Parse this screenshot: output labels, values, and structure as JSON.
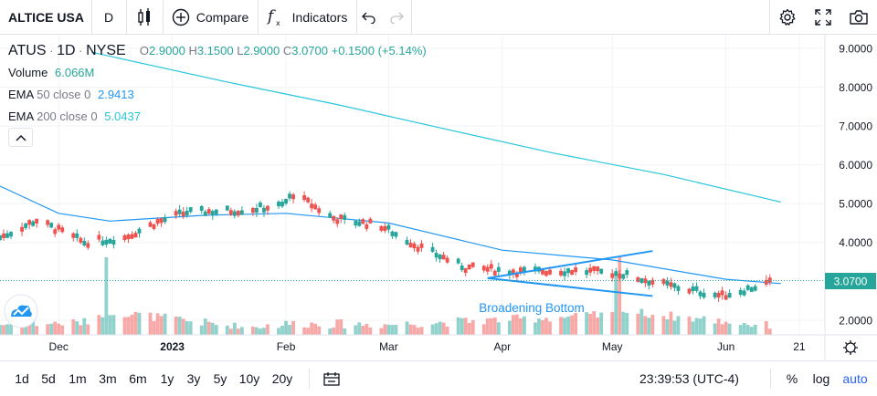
{
  "toolbar": {
    "symbol": "ALTICE USA",
    "interval": "D",
    "compare_label": "Compare",
    "indicators_label": "Indicators"
  },
  "legend": {
    "symbol": "ATUS",
    "interval": "1D",
    "exchange": "NYSE",
    "o_label": "O",
    "o_value": "2.9000",
    "h_label": "H",
    "h_value": "3.1500",
    "l_label": "L",
    "l_value": "2.9000",
    "c_label": "C",
    "c_value": "3.0700",
    "change": "+0.1500 (+5.14%)",
    "volume_label": "Volume",
    "volume_value": "6.066M",
    "ema50_label": "EMA",
    "ema50_params": "50 close 0",
    "ema50_value": "2.9413",
    "ema200_label": "EMA",
    "ema200_params": "200 close 0",
    "ema200_value": "5.0437"
  },
  "bottom": {
    "ranges": [
      "1d",
      "5d",
      "1m",
      "3m",
      "6m",
      "1y",
      "3y",
      "5y",
      "10y",
      "20y"
    ],
    "time": "23:39:53 (UTC-4)",
    "percent": "%",
    "log": "log",
    "auto": "auto"
  },
  "colors": {
    "up": "#26a69a",
    "down": "#ef5350",
    "ema50": "#2196f3",
    "ema200": "#26c6da",
    "pattern": "#2196f3",
    "accent": "#2962ff"
  },
  "icons": [
    "candles-icon",
    "plus-circle-icon",
    "fx-icon",
    "undo-icon",
    "redo-icon",
    "gear-icon",
    "fullscreen-icon",
    "camera-icon",
    "chevron-up-icon",
    "logo-icon",
    "date-range-icon",
    "gear-icon"
  ],
  "chart_data": {
    "type": "candlestick",
    "symbol": "ATUS",
    "y_axis": {
      "ticks": [
        "9.0000",
        "8.0000",
        "7.0000",
        "6.0000",
        "5.0000",
        "4.0000",
        "2.0000"
      ],
      "tick_values": [
        9,
        8,
        7,
        6,
        5,
        4,
        2
      ],
      "ylim": [
        1.62,
        9.35
      ]
    },
    "x_axis": {
      "labels": [
        "Dec",
        "2023",
        "Feb",
        "Mar",
        "Apr",
        "May",
        "Jun",
        "21"
      ],
      "label_dates": [
        "2022-12-01",
        "2023-01-01",
        "2023-02-01",
        "2023-03-01",
        "2023-04-01",
        "2023-05-01",
        "2023-06-01",
        "2023-06-21"
      ],
      "xlim": [
        "2022-11-15",
        "2023-06-28"
      ]
    },
    "last_price": "3.0700",
    "last_price_value": 3.07,
    "annotation": "Broadening Bottom",
    "pattern_lines": [
      {
        "from": [
          "2023-03-28",
          3.08
        ],
        "to": [
          "2023-05-12",
          3.78
        ]
      },
      {
        "from": [
          "2023-03-28",
          3.08
        ],
        "to": [
          "2023-05-12",
          2.62
        ]
      }
    ],
    "ohlc_points": [
      [
        "2022-11-15",
        4.0,
        4.35,
        3.95,
        4.25
      ],
      [
        "2022-11-25",
        4.55,
        4.8,
        4.4,
        4.6
      ],
      [
        "2022-12-08",
        4.2,
        4.3,
        3.7,
        3.8
      ],
      [
        "2022-12-19",
        4.05,
        4.3,
        3.95,
        4.2
      ],
      [
        "2022-12-28",
        4.4,
        4.75,
        4.3,
        4.65
      ],
      [
        "2023-01-05",
        4.75,
        4.95,
        4.6,
        4.8
      ],
      [
        "2023-01-19",
        4.8,
        4.95,
        4.6,
        4.85
      ],
      [
        "2023-01-31",
        4.9,
        5.05,
        4.75,
        5.0
      ],
      [
        "2023-02-03",
        5.2,
        5.55,
        5.1,
        5.3
      ],
      [
        "2023-02-14",
        4.7,
        4.8,
        4.4,
        4.55
      ],
      [
        "2023-02-27",
        4.5,
        4.65,
        4.25,
        4.35
      ],
      [
        "2023-03-08",
        4.1,
        4.2,
        3.7,
        3.8
      ],
      [
        "2023-03-22",
        3.4,
        3.5,
        3.2,
        3.3
      ],
      [
        "2023-04-06",
        3.2,
        3.4,
        3.05,
        3.3
      ],
      [
        "2023-04-20",
        3.3,
        3.45,
        3.15,
        3.25
      ],
      [
        "2023-05-03",
        3.0,
        3.7,
        2.85,
        3.4
      ],
      [
        "2023-05-17",
        3.0,
        3.1,
        2.65,
        2.75
      ],
      [
        "2023-05-31",
        2.7,
        2.9,
        2.45,
        2.55
      ],
      [
        "2023-06-13",
        2.85,
        3.15,
        2.8,
        3.07
      ]
    ],
    "volume_points": [
      [
        "2022-11-15",
        0.3
      ],
      [
        "2022-12-08",
        0.4
      ],
      [
        "2022-12-14",
        1.0
      ],
      [
        "2023-01-20",
        0.15
      ],
      [
        "2023-02-03",
        0.35
      ],
      [
        "2023-03-01",
        0.3
      ],
      [
        "2023-03-24",
        0.48
      ],
      [
        "2023-05-02",
        0.8
      ],
      [
        "2023-05-03",
        1.0
      ],
      [
        "2023-06-13",
        0.22
      ]
    ],
    "ema50": [
      [
        "2022-11-15",
        5.45
      ],
      [
        "2022-12-01",
        4.75
      ],
      [
        "2022-12-15",
        4.55
      ],
      [
        "2023-01-10",
        4.7
      ],
      [
        "2023-02-01",
        4.75
      ],
      [
        "2023-03-01",
        4.5
      ],
      [
        "2023-04-01",
        3.8
      ],
      [
        "2023-05-01",
        3.55
      ],
      [
        "2023-06-01",
        3.05
      ],
      [
        "2023-06-16",
        2.94
      ]
    ],
    "ema200": [
      [
        "2022-12-10",
        8.9
      ],
      [
        "2023-01-15",
        8.15
      ],
      [
        "2023-02-15",
        7.55
      ],
      [
        "2023-03-15",
        6.95
      ],
      [
        "2023-04-15",
        6.3
      ],
      [
        "2023-05-15",
        5.75
      ],
      [
        "2023-06-16",
        5.04
      ]
    ]
  }
}
